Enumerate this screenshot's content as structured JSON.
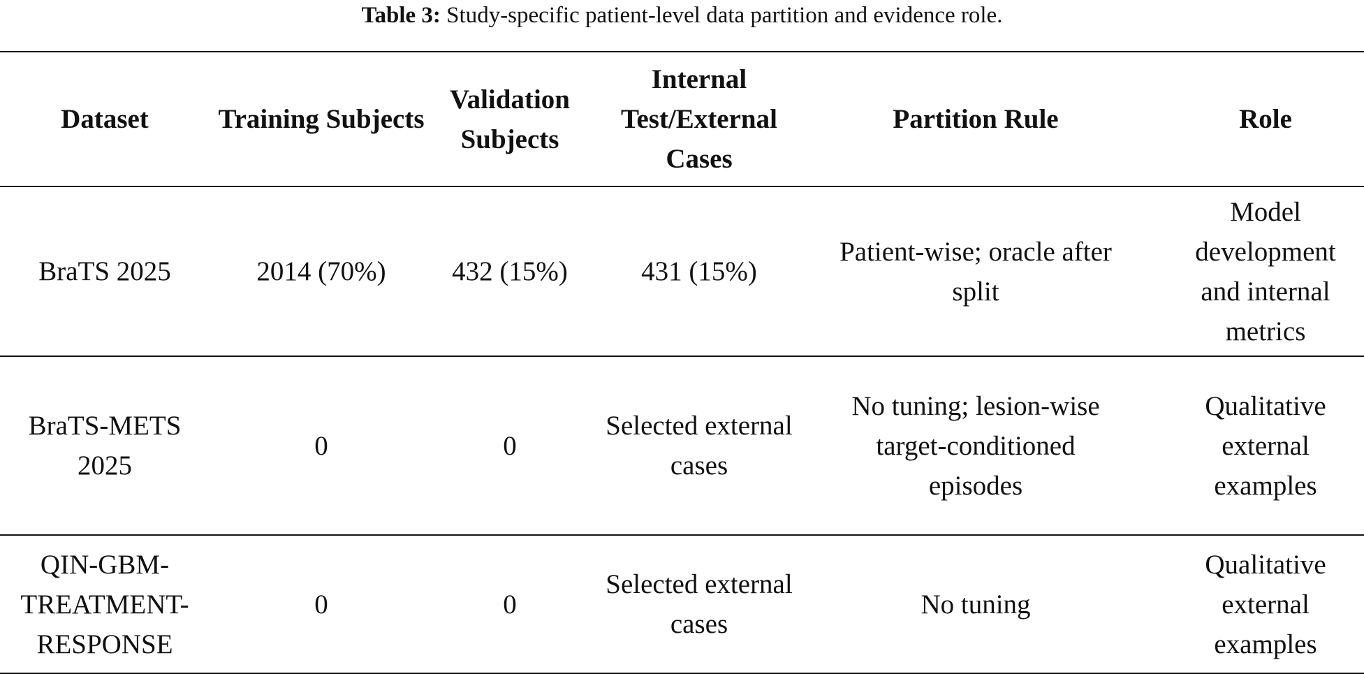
{
  "caption": {
    "label": "Table 3:",
    "text": "Study-specific patient-level data partition and evidence role."
  },
  "table": {
    "headers": [
      "Dataset",
      "Training Subjects",
      "Validation Subjects",
      "Internal Test/External Cases",
      "Partition Rule",
      "Role"
    ],
    "rows": [
      {
        "dataset": "BraTS 2025",
        "training": "2014 (70%)",
        "validation": "432 (15%)",
        "test": "431 (15%)",
        "partition_rule": "Patient-wise; oracle after split",
        "role": "Model development and internal metrics"
      },
      {
        "dataset": "BraTS-METS 2025",
        "training": "0",
        "validation": "0",
        "test": "Selected external cases",
        "partition_rule": "No tuning; lesion-wise target-conditioned episodes",
        "role": "Qualitative external examples"
      },
      {
        "dataset": "QIN-GBM-TREATMENT-RESPONSE",
        "training": "0",
        "validation": "0",
        "test": "Selected external cases",
        "partition_rule": "No tuning",
        "role": "Qualitative external examples"
      }
    ]
  }
}
